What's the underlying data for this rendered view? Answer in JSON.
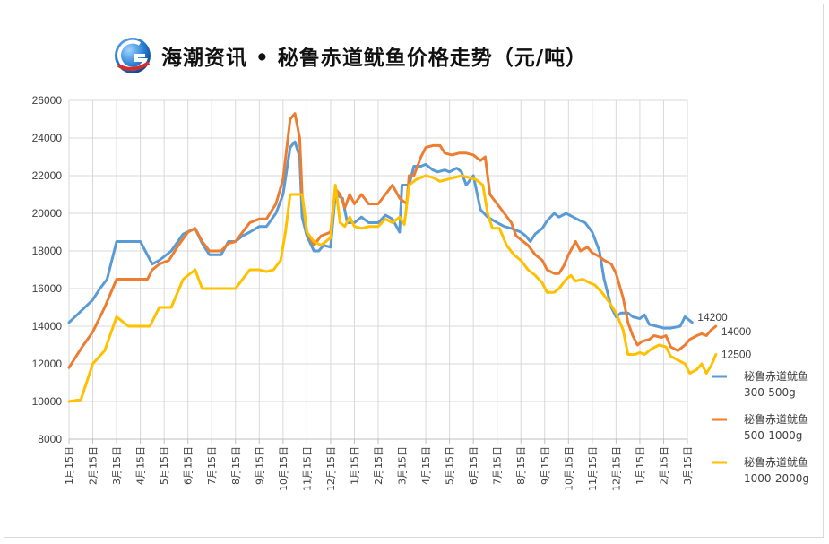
{
  "header": {
    "title": "海潮资讯 • 秘鲁赤道鱿鱼价格走势（元/吨）",
    "logo_icon": "haichao-logo-icon"
  },
  "chart_data": {
    "type": "line",
    "title": "海潮资讯 • 秘鲁赤道鱿鱼价格走势（元/吨）",
    "xlabel": "",
    "ylabel": "",
    "ylim": [
      8000,
      26000
    ],
    "yticks": [
      8000,
      10000,
      12000,
      14000,
      16000,
      18000,
      20000,
      22000,
      24000,
      26000
    ],
    "grid": true,
    "legend_position": "right",
    "x_ticks": [
      "1月15日",
      "2月15日",
      "3月15日",
      "4月15日",
      "5月15日",
      "6月15日",
      "7月15日",
      "8月15日",
      "9月15日",
      "10月15日",
      "11月15日",
      "12月15日",
      "1月15日",
      "2月15日",
      "3月15日",
      "4月15日",
      "5月15日",
      "6月15日",
      "7月15日",
      "8月15日",
      "9月15日",
      "10月15日",
      "11月15日",
      "12月15日",
      "1月15日",
      "2月15日",
      "3月15日"
    ],
    "x_range": [
      0,
      26
    ],
    "series": [
      {
        "name": "秘鲁赤道鱿鱼300-500g",
        "color": "#5b9bd5",
        "end_label": "14200",
        "points": [
          [
            0,
            14200
          ],
          [
            0.5,
            14800
          ],
          [
            1,
            15400
          ],
          [
            1.3,
            16000
          ],
          [
            1.6,
            16500
          ],
          [
            2,
            18500
          ],
          [
            2.5,
            18500
          ],
          [
            3,
            18500
          ],
          [
            3.5,
            17300
          ],
          [
            3.8,
            17500
          ],
          [
            4.3,
            18000
          ],
          [
            4.8,
            18900
          ],
          [
            5.3,
            19200
          ],
          [
            5.6,
            18400
          ],
          [
            5.9,
            17800
          ],
          [
            6.4,
            17800
          ],
          [
            6.7,
            18500
          ],
          [
            7,
            18500
          ],
          [
            7.3,
            18800
          ],
          [
            7.6,
            19000
          ],
          [
            8,
            19300
          ],
          [
            8.3,
            19300
          ],
          [
            8.7,
            20000
          ],
          [
            9,
            21000
          ],
          [
            9.3,
            23500
          ],
          [
            9.5,
            23800
          ],
          [
            9.7,
            23000
          ],
          [
            9.8,
            19800
          ],
          [
            10,
            18800
          ],
          [
            10.3,
            18000
          ],
          [
            10.5,
            18000
          ],
          [
            10.7,
            18300
          ],
          [
            11,
            18200
          ],
          [
            11.2,
            21000
          ],
          [
            11.5,
            20800
          ],
          [
            11.7,
            19500
          ],
          [
            12,
            19500
          ],
          [
            12.3,
            19800
          ],
          [
            12.6,
            19500
          ],
          [
            13,
            19500
          ],
          [
            13.3,
            19900
          ],
          [
            13.6,
            19700
          ],
          [
            13.9,
            19000
          ],
          [
            14,
            21500
          ],
          [
            14.3,
            21500
          ],
          [
            14.5,
            22500
          ],
          [
            14.8,
            22500
          ],
          [
            15,
            22600
          ],
          [
            15.3,
            22300
          ],
          [
            15.5,
            22200
          ],
          [
            15.8,
            22300
          ],
          [
            16,
            22200
          ],
          [
            16.3,
            22400
          ],
          [
            16.5,
            22200
          ],
          [
            16.7,
            21500
          ],
          [
            17,
            22000
          ],
          [
            17.3,
            20200
          ],
          [
            17.6,
            19800
          ],
          [
            18,
            19500
          ],
          [
            18.3,
            19300
          ],
          [
            18.6,
            19200
          ],
          [
            19,
            19000
          ],
          [
            19.2,
            18800
          ],
          [
            19.4,
            18500
          ],
          [
            19.6,
            18900
          ],
          [
            19.9,
            19200
          ],
          [
            20.1,
            19600
          ],
          [
            20.4,
            20000
          ],
          [
            20.6,
            19800
          ],
          [
            20.9,
            20000
          ],
          [
            21.2,
            19800
          ],
          [
            21.5,
            19600
          ],
          [
            21.7,
            19500
          ],
          [
            22,
            19000
          ],
          [
            22.3,
            18000
          ],
          [
            22.5,
            16500
          ],
          [
            22.8,
            15000
          ],
          [
            23,
            14500
          ],
          [
            23.2,
            14700
          ],
          [
            23.5,
            14700
          ],
          [
            23.7,
            14500
          ],
          [
            24,
            14400
          ],
          [
            24.2,
            14600
          ],
          [
            24.4,
            14100
          ],
          [
            24.7,
            14000
          ],
          [
            25,
            13900
          ],
          [
            25.3,
            13900
          ],
          [
            25.7,
            14000
          ],
          [
            25.9,
            14500
          ],
          [
            26.2,
            14200
          ]
        ]
      },
      {
        "name": "秘鲁赤道鱿鱼500-1000g",
        "color": "#ed7d31",
        "end_label": "14000",
        "points": [
          [
            0,
            11800
          ],
          [
            0.5,
            12800
          ],
          [
            1,
            13700
          ],
          [
            1.5,
            15000
          ],
          [
            2,
            16500
          ],
          [
            2.5,
            16500
          ],
          [
            3,
            16500
          ],
          [
            3.3,
            16500
          ],
          [
            3.5,
            17000
          ],
          [
            3.8,
            17300
          ],
          [
            4.2,
            17500
          ],
          [
            4.6,
            18300
          ],
          [
            5,
            19000
          ],
          [
            5.3,
            19200
          ],
          [
            5.6,
            18500
          ],
          [
            5.9,
            18000
          ],
          [
            6.4,
            18000
          ],
          [
            6.7,
            18400
          ],
          [
            7,
            18500
          ],
          [
            7.3,
            19000
          ],
          [
            7.6,
            19500
          ],
          [
            8,
            19700
          ],
          [
            8.3,
            19700
          ],
          [
            8.7,
            20500
          ],
          [
            9,
            21800
          ],
          [
            9.3,
            25000
          ],
          [
            9.5,
            25300
          ],
          [
            9.7,
            24000
          ],
          [
            9.8,
            21000
          ],
          [
            10,
            19000
          ],
          [
            10.3,
            18300
          ],
          [
            10.6,
            18800
          ],
          [
            11,
            19000
          ],
          [
            11.2,
            21300
          ],
          [
            11.4,
            21000
          ],
          [
            11.6,
            20300
          ],
          [
            11.8,
            21000
          ],
          [
            12,
            20500
          ],
          [
            12.3,
            21000
          ],
          [
            12.6,
            20500
          ],
          [
            13,
            20500
          ],
          [
            13.3,
            21000
          ],
          [
            13.6,
            21500
          ],
          [
            13.9,
            20800
          ],
          [
            14.2,
            20500
          ],
          [
            14.3,
            22000
          ],
          [
            14.5,
            22000
          ],
          [
            14.8,
            23000
          ],
          [
            15,
            23500
          ],
          [
            15.3,
            23600
          ],
          [
            15.6,
            23600
          ],
          [
            15.8,
            23200
          ],
          [
            16.1,
            23100
          ],
          [
            16.4,
            23200
          ],
          [
            16.7,
            23200
          ],
          [
            17,
            23100
          ],
          [
            17.3,
            22800
          ],
          [
            17.5,
            23000
          ],
          [
            17.7,
            21000
          ],
          [
            18,
            20500
          ],
          [
            18.3,
            20000
          ],
          [
            18.6,
            19500
          ],
          [
            18.8,
            18800
          ],
          [
            19,
            18600
          ],
          [
            19.3,
            18300
          ],
          [
            19.6,
            17800
          ],
          [
            19.9,
            17500
          ],
          [
            20.1,
            17000
          ],
          [
            20.4,
            16800
          ],
          [
            20.6,
            16800
          ],
          [
            20.8,
            17200
          ],
          [
            21,
            17800
          ],
          [
            21.3,
            18500
          ],
          [
            21.5,
            18000
          ],
          [
            21.8,
            18200
          ],
          [
            22,
            17900
          ],
          [
            22.3,
            17700
          ],
          [
            22.5,
            17500
          ],
          [
            22.8,
            17300
          ],
          [
            23,
            16800
          ],
          [
            23.3,
            15500
          ],
          [
            23.5,
            14200
          ],
          [
            23.7,
            13500
          ],
          [
            23.9,
            13000
          ],
          [
            24.1,
            13200
          ],
          [
            24.4,
            13300
          ],
          [
            24.6,
            13500
          ],
          [
            24.9,
            13400
          ],
          [
            25.1,
            13500
          ],
          [
            25.3,
            12900
          ],
          [
            25.6,
            12700
          ],
          [
            25.9,
            13000
          ],
          [
            26.1,
            13300
          ],
          [
            26.4,
            13500
          ],
          [
            26.6,
            13600
          ],
          [
            26.8,
            13500
          ],
          [
            27,
            13800
          ],
          [
            27.2,
            14000
          ]
        ]
      },
      {
        "name": "秘鲁赤道鱿鱼1000-2000g",
        "color": "#ffc000",
        "end_label": "12500",
        "points": [
          [
            0,
            10000
          ],
          [
            0.5,
            10100
          ],
          [
            1,
            12000
          ],
          [
            1.5,
            12700
          ],
          [
            2,
            14500
          ],
          [
            2.5,
            14000
          ],
          [
            3,
            14000
          ],
          [
            3.4,
            14000
          ],
          [
            3.8,
            15000
          ],
          [
            4.3,
            15000
          ],
          [
            4.8,
            16500
          ],
          [
            5.3,
            17000
          ],
          [
            5.6,
            16000
          ],
          [
            5.9,
            16000
          ],
          [
            6.4,
            16000
          ],
          [
            6.7,
            16000
          ],
          [
            7,
            16000
          ],
          [
            7.3,
            16500
          ],
          [
            7.6,
            17000
          ],
          [
            8,
            17000
          ],
          [
            8.3,
            16900
          ],
          [
            8.6,
            17000
          ],
          [
            8.9,
            17500
          ],
          [
            9.1,
            19000
          ],
          [
            9.3,
            21000
          ],
          [
            9.6,
            21000
          ],
          [
            9.8,
            21000
          ],
          [
            10,
            19000
          ],
          [
            10.3,
            18500
          ],
          [
            10.6,
            18300
          ],
          [
            11,
            18700
          ],
          [
            11.2,
            21500
          ],
          [
            11.4,
            19500
          ],
          [
            11.6,
            19300
          ],
          [
            11.8,
            19800
          ],
          [
            12,
            19300
          ],
          [
            12.3,
            19200
          ],
          [
            12.6,
            19300
          ],
          [
            13,
            19300
          ],
          [
            13.3,
            19700
          ],
          [
            13.6,
            19500
          ],
          [
            13.9,
            19800
          ],
          [
            14.1,
            19400
          ],
          [
            14.3,
            21500
          ],
          [
            14.6,
            21800
          ],
          [
            15,
            22000
          ],
          [
            15.3,
            21900
          ],
          [
            15.6,
            21700
          ],
          [
            15.9,
            21800
          ],
          [
            16.2,
            21900
          ],
          [
            16.5,
            22000
          ],
          [
            16.8,
            21900
          ],
          [
            17.1,
            21800
          ],
          [
            17.4,
            21500
          ],
          [
            17.6,
            20000
          ],
          [
            17.8,
            19200
          ],
          [
            18.1,
            19200
          ],
          [
            18.4,
            18300
          ],
          [
            18.7,
            17800
          ],
          [
            19,
            17500
          ],
          [
            19.3,
            17000
          ],
          [
            19.6,
            16700
          ],
          [
            19.9,
            16300
          ],
          [
            20.1,
            15800
          ],
          [
            20.4,
            15800
          ],
          [
            20.6,
            16000
          ],
          [
            20.9,
            16500
          ],
          [
            21.1,
            16700
          ],
          [
            21.3,
            16400
          ],
          [
            21.6,
            16500
          ],
          [
            21.9,
            16300
          ],
          [
            22.1,
            16200
          ],
          [
            22.4,
            15800
          ],
          [
            22.7,
            15300
          ],
          [
            23,
            14700
          ],
          [
            23.3,
            13800
          ],
          [
            23.5,
            12500
          ],
          [
            23.8,
            12500
          ],
          [
            24,
            12600
          ],
          [
            24.2,
            12500
          ],
          [
            24.5,
            12800
          ],
          [
            24.8,
            13000
          ],
          [
            25.1,
            12900
          ],
          [
            25.3,
            12400
          ],
          [
            25.6,
            12200
          ],
          [
            25.9,
            12000
          ],
          [
            26.1,
            11500
          ],
          [
            26.4,
            11700
          ],
          [
            26.6,
            12000
          ],
          [
            26.8,
            11500
          ],
          [
            27,
            11900
          ],
          [
            27.2,
            12500
          ]
        ]
      }
    ]
  },
  "legend": {
    "items": [
      {
        "line1": "秘鲁赤道鱿鱼",
        "line2": "300-500g",
        "color": "#5b9bd5"
      },
      {
        "line1": "秘鲁赤道鱿鱼",
        "line2": "500-1000g",
        "color": "#ed7d31"
      },
      {
        "line1": "秘鲁赤道鱿鱼",
        "line2": "1000-2000g",
        "color": "#ffc000"
      }
    ]
  }
}
